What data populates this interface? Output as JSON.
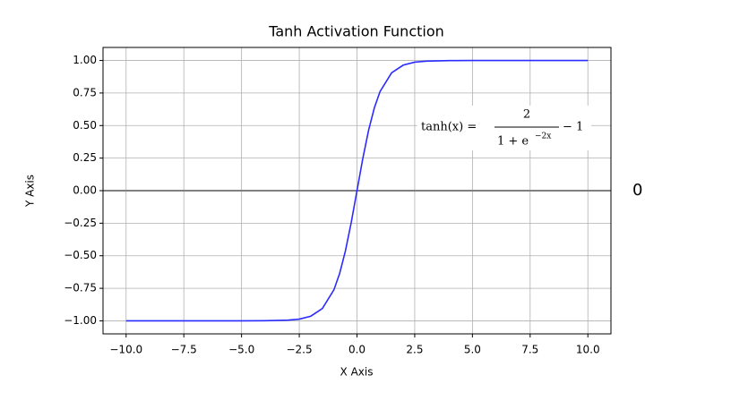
{
  "chart_data": {
    "type": "line",
    "title": "Tanh Activation Function",
    "x_label": "X Axis",
    "y_label": "Y Axis",
    "x": [
      -10,
      -9,
      -8,
      -7,
      -6,
      -5,
      -4,
      -3,
      -2.5,
      -2,
      -1.5,
      -1,
      -0.75,
      -0.5,
      -0.25,
      0,
      0.25,
      0.5,
      0.75,
      1,
      1.5,
      2,
      2.5,
      3,
      4,
      5,
      6,
      7,
      8,
      9,
      10
    ],
    "values": [
      -1.0,
      -1.0,
      -1.0,
      -1.0,
      -1.0,
      -1.0,
      -0.999,
      -0.995,
      -0.987,
      -0.964,
      -0.905,
      -0.762,
      -0.635,
      -0.462,
      -0.245,
      0,
      0.245,
      0.462,
      0.635,
      0.762,
      0.905,
      0.964,
      0.987,
      0.995,
      0.999,
      1.0,
      1.0,
      1.0,
      1.0,
      1.0,
      1.0
    ],
    "color": "#2b2bff",
    "hline": 0,
    "hline_color": "#808080",
    "xlim": [
      -11,
      11
    ],
    "ylim": [
      -1.1,
      1.1
    ],
    "xticks": [
      {
        "value": -10,
        "label": "−10.0"
      },
      {
        "value": -7.5,
        "label": "−7.5"
      },
      {
        "value": -5,
        "label": "−5.0"
      },
      {
        "value": -2.5,
        "label": "−2.5"
      },
      {
        "value": 0,
        "label": "0.0"
      },
      {
        "value": 2.5,
        "label": "2.5"
      },
      {
        "value": 5,
        "label": "5.0"
      },
      {
        "value": 7.5,
        "label": "7.5"
      },
      {
        "value": 10,
        "label": "10.0"
      }
    ],
    "yticks": [
      {
        "value": 1,
        "label": "1.00"
      },
      {
        "value": 0.75,
        "label": "0.75"
      },
      {
        "value": 0.5,
        "label": "0.50"
      },
      {
        "value": 0.25,
        "label": "0.25"
      },
      {
        "value": 0,
        "label": "0.00"
      },
      {
        "value": -0.25,
        "label": "−0.25"
      },
      {
        "value": -0.5,
        "label": "−0.50"
      },
      {
        "value": -0.75,
        "label": "−0.75"
      },
      {
        "value": -1,
        "label": "−1.00"
      }
    ],
    "grid": true,
    "annotation": {
      "lhs": "tanh(x) =",
      "numerator": "2",
      "denominator": "1 + e",
      "exponent": "−2x",
      "rhs": "− 1"
    },
    "output_text": "0"
  }
}
